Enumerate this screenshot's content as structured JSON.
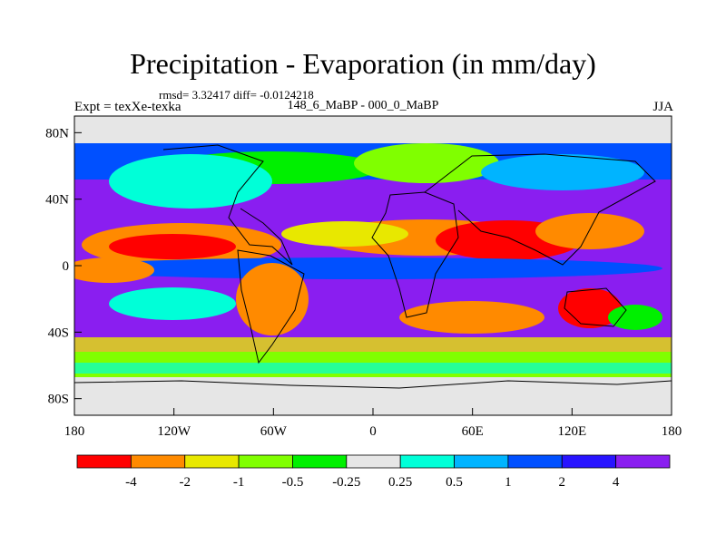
{
  "title": "Precipitation - Evaporation (in mm/day)",
  "stats": "rmsd= 3.32417 diff= -0.0124218",
  "experiment": "Expt = texXe-texka",
  "subtitle": "148_6_MaBP - 000_0_MaBP",
  "season": "JJA",
  "map": {
    "y_ticks": [
      {
        "label": "80N",
        "lat": 80
      },
      {
        "label": "40N",
        "lat": 40
      },
      {
        "label": "0",
        "lat": 0
      },
      {
        "label": "40S",
        "lat": -40
      },
      {
        "label": "80S",
        "lat": -80
      }
    ],
    "x_ticks": [
      {
        "label": "180",
        "lon": -180
      },
      {
        "label": "120W",
        "lon": -120
      },
      {
        "label": "60W",
        "lon": -60
      },
      {
        "label": "0",
        "lon": 0
      },
      {
        "label": "60E",
        "lon": 60
      },
      {
        "label": "120E",
        "lon": 120
      },
      {
        "label": "180",
        "lon": 180
      }
    ]
  },
  "colorbar": {
    "colors": [
      "#ff0000",
      "#ff8a00",
      "#e8e800",
      "#80ff00",
      "#00f000",
      "#e6e6e6",
      "#00ffd8",
      "#00b4ff",
      "#0050ff",
      "#2814ff",
      "#8a1ef0"
    ],
    "labels": [
      "-4",
      "-2",
      "-1",
      "-0.5",
      "-0.25",
      "0.25",
      "0.5",
      "1",
      "2",
      "4"
    ]
  }
}
